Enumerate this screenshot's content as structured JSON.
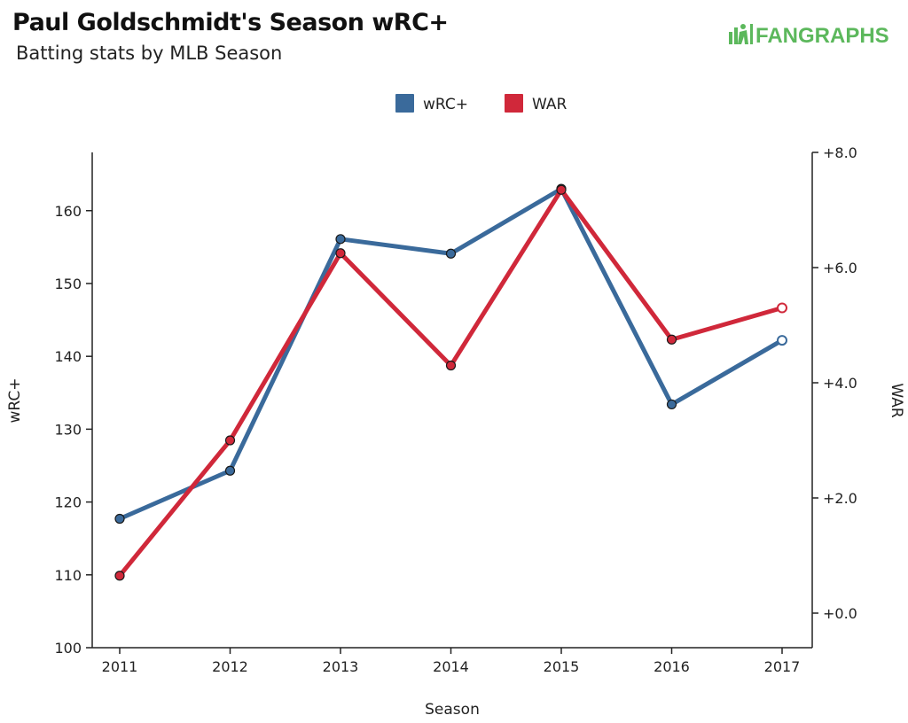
{
  "header": {
    "title": "Paul Goldschmidt's Season wRC+",
    "subtitle": "Batting stats by MLB Season",
    "logo_text": "FANGRAPHS"
  },
  "colors": {
    "wrc": "#3a6a9b",
    "war": "#d0283a",
    "logo": "#5cb85c"
  },
  "chart_data": {
    "type": "line",
    "xlabel": "Season",
    "ylabel": "wRC+",
    "y2label": "WAR",
    "categories": [
      "2011",
      "2012",
      "2013",
      "2014",
      "2015",
      "2016",
      "2017"
    ],
    "ylim": [
      100,
      168
    ],
    "y2lim": [
      -0.6,
      8.0
    ],
    "yticks": [
      "100",
      "110",
      "120",
      "130",
      "140",
      "150",
      "160"
    ],
    "y2ticks": [
      "+0.0",
      "+2.0",
      "+4.0",
      "+6.0",
      "+8.0"
    ],
    "legend_position": "top-center",
    "series": [
      {
        "name": "wRC+",
        "axis": "left",
        "values": [
          117.7,
          124.3,
          156.1,
          154.1,
          163.0,
          133.4,
          142.2
        ],
        "last_open": true
      },
      {
        "name": "WAR",
        "axis": "right",
        "values": [
          0.65,
          3.0,
          6.25,
          4.3,
          7.35,
          4.75,
          5.3
        ],
        "last_open": true
      }
    ]
  }
}
